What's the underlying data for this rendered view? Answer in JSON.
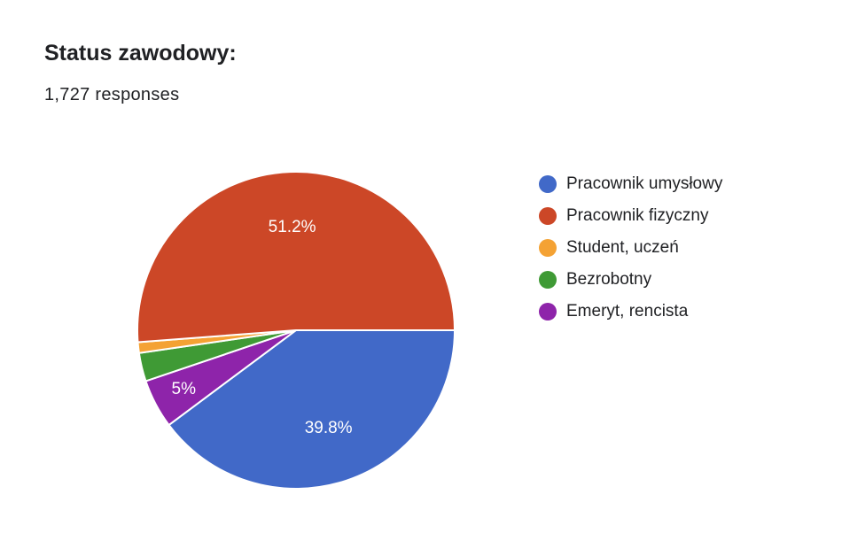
{
  "header": {
    "title": "Status zawodowy:",
    "subtitle": "1,727 responses"
  },
  "chart_data": {
    "type": "pie",
    "title": "Status zawodowy:",
    "total_responses": 1727,
    "legend_position": "right",
    "slices": [
      {
        "label": "Pracownik umysłowy",
        "value": 39.8,
        "color": "#4169c8",
        "data_label": "39.8%"
      },
      {
        "label": "Emeryt, rencista",
        "value": 5.0,
        "color": "#8e24aa",
        "data_label": "5%"
      },
      {
        "label": "Bezrobotny",
        "value": 2.9,
        "color": "#3f9a35",
        "data_label": ""
      },
      {
        "label": "Student, uczeń",
        "value": 1.1,
        "color": "#f4a234",
        "data_label": ""
      },
      {
        "label": "Pracownik fizyczny",
        "value": 51.2,
        "color": "#cc4727",
        "data_label": "51.2%"
      }
    ],
    "legend": [
      {
        "label": "Pracownik umysłowy",
        "color": "#4169c8"
      },
      {
        "label": "Pracownik fizyczny",
        "color": "#cc4727"
      },
      {
        "label": "Student, uczeń",
        "color": "#f4a234"
      },
      {
        "label": "Bezrobotny",
        "color": "#3f9a35"
      },
      {
        "label": "Emeryt, rencista",
        "color": "#8e24aa"
      }
    ]
  }
}
